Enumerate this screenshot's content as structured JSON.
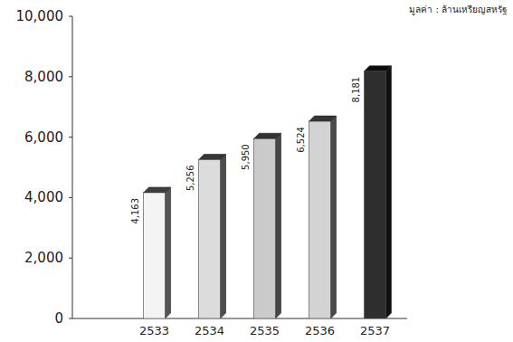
{
  "chart_data": {
    "type": "bar",
    "subtitle": "มูลค่า : ล้านเหรียญสหรัฐ",
    "categories": [
      "2533",
      "2534",
      "2535",
      "2536",
      "2537"
    ],
    "values": [
      4163,
      5256,
      5950,
      6524,
      8181
    ],
    "value_labels": [
      "4,163",
      "5,256",
      "5,950",
      "6,524",
      "8,181"
    ],
    "colors": [
      "#f4f4f4",
      "#dcdcdc",
      "#cbcbcb",
      "#d3d3d3",
      "#2e2e2e"
    ],
    "ylim": [
      0,
      10000
    ],
    "yticks": [
      0,
      {
        "value": 2000,
        "label": "2,000"
      },
      {
        "value": 4000,
        "label": "4,000"
      },
      {
        "value": 6000,
        "label": "6,000"
      },
      {
        "value": 8000,
        "label": "8,000"
      },
      {
        "value": 10000,
        "label": "10,000"
      }
    ],
    "grid": false,
    "data_labels": true
  }
}
